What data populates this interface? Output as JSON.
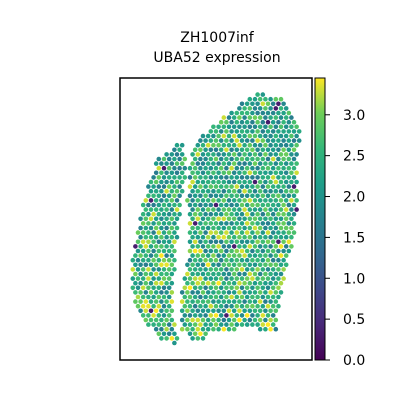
{
  "chart_data": {
    "type": "heatmap",
    "title_line1": "ZH1007inf",
    "title_line2": "UBA52 expression",
    "xlabel": "",
    "ylabel": "",
    "colorbar": {
      "colormap": "viridis",
      "range": [
        0.0,
        3.45
      ],
      "tick_values": [
        0.0,
        0.5,
        1.0,
        1.5,
        2.0,
        2.5,
        3.0
      ],
      "tick_labels": [
        "0.0",
        "0.5",
        "1.0",
        "1.5",
        "2.0",
        "2.5",
        "3.0"
      ]
    },
    "expression_summary": {
      "typical_range": [
        1.6,
        3.0
      ],
      "low_spots_approx_value": 0.3,
      "high_spots_approx_value": 3.3
    }
  }
}
